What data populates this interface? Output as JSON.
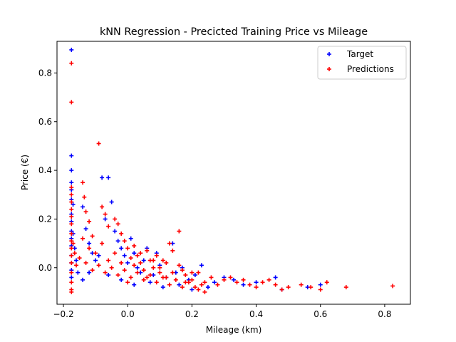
{
  "chart_data": {
    "type": "scatter",
    "title": "kNN Regression - Precicted Training Price vs Mileage",
    "xlabel": "Mileage (km)",
    "ylabel": "Price (€)",
    "xlim": [
      -0.22,
      0.88
    ],
    "ylim": [
      -0.15,
      0.93
    ],
    "xticks": [
      -0.2,
      0.0,
      0.2,
      0.4,
      0.6,
      0.8
    ],
    "xtick_labels": [
      "−0.2",
      "0.0",
      "0.2",
      "0.4",
      "0.6",
      "0.8"
    ],
    "yticks": [
      0.0,
      0.2,
      0.4,
      0.6,
      0.8
    ],
    "ytick_labels": [
      "0.0",
      "0.2",
      "0.4",
      "0.6",
      "0.8"
    ],
    "grid": false,
    "legend_position": "top-right",
    "marker": "plus",
    "series": [
      {
        "name": "Target",
        "color": "#0000ff",
        "points": [
          [
            -0.175,
            0.895
          ],
          [
            -0.175,
            0.46
          ],
          [
            -0.175,
            0.4
          ],
          [
            -0.175,
            0.35
          ],
          [
            -0.175,
            0.32
          ],
          [
            -0.175,
            0.28
          ],
          [
            -0.175,
            0.22
          ],
          [
            -0.175,
            0.19
          ],
          [
            -0.175,
            0.15
          ],
          [
            -0.175,
            0.12
          ],
          [
            -0.175,
            0.09
          ],
          [
            -0.175,
            0.05
          ],
          [
            -0.175,
            0.02
          ],
          [
            -0.175,
            -0.01
          ],
          [
            -0.175,
            -0.04
          ],
          [
            -0.17,
            0.26
          ],
          [
            -0.17,
            0.14
          ],
          [
            -0.165,
            0.08
          ],
          [
            -0.16,
            0.03
          ],
          [
            -0.155,
            -0.02
          ],
          [
            -0.14,
            0.25
          ],
          [
            -0.13,
            0.16
          ],
          [
            -0.12,
            0.1
          ],
          [
            -0.11,
            0.06
          ],
          [
            -0.1,
            0.03
          ],
          [
            -0.08,
            0.37
          ],
          [
            -0.06,
            0.37
          ],
          [
            -0.05,
            0.27
          ],
          [
            -0.07,
            0.2
          ],
          [
            -0.04,
            0.15
          ],
          [
            -0.03,
            0.11
          ],
          [
            -0.02,
            0.08
          ],
          [
            -0.01,
            0.05
          ],
          [
            0.0,
            0.02
          ],
          [
            0.01,
            0.12
          ],
          [
            0.02,
            0.06
          ],
          [
            0.03,
            0.0
          ],
          [
            0.04,
            -0.02
          ],
          [
            0.05,
            0.03
          ],
          [
            0.06,
            0.08
          ],
          [
            0.08,
            -0.03
          ],
          [
            0.09,
            0.06
          ],
          [
            0.1,
            0.01
          ],
          [
            0.12,
            -0.04
          ],
          [
            0.14,
            0.1
          ],
          [
            0.15,
            -0.02
          ],
          [
            0.17,
            0.0
          ],
          [
            0.19,
            -0.05
          ],
          [
            0.21,
            -0.03
          ],
          [
            0.23,
            0.01
          ],
          [
            0.25,
            -0.08
          ],
          [
            0.27,
            -0.06
          ],
          [
            0.3,
            -0.04
          ],
          [
            0.33,
            -0.05
          ],
          [
            0.36,
            -0.07
          ],
          [
            0.4,
            -0.06
          ],
          [
            0.46,
            -0.04
          ],
          [
            0.48,
            -0.09
          ],
          [
            0.56,
            -0.08
          ],
          [
            0.6,
            -0.07
          ],
          [
            -0.09,
            0.05
          ],
          [
            -0.12,
            -0.02
          ],
          [
            -0.14,
            -0.05
          ],
          [
            -0.06,
            -0.03
          ],
          [
            -0.02,
            -0.05
          ],
          [
            0.02,
            -0.07
          ],
          [
            0.07,
            -0.06
          ],
          [
            0.11,
            -0.08
          ],
          [
            0.16,
            -0.07
          ],
          [
            0.2,
            -0.09
          ]
        ]
      },
      {
        "name": "Predictions",
        "color": "#ff0000",
        "points": [
          [
            -0.175,
            0.84
          ],
          [
            -0.175,
            0.68
          ],
          [
            -0.175,
            0.33
          ],
          [
            -0.175,
            0.3
          ],
          [
            -0.175,
            0.27
          ],
          [
            -0.175,
            0.24
          ],
          [
            -0.175,
            0.21
          ],
          [
            -0.175,
            0.18
          ],
          [
            -0.175,
            0.14
          ],
          [
            -0.175,
            0.11
          ],
          [
            -0.175,
            0.08
          ],
          [
            -0.175,
            0.05
          ],
          [
            -0.175,
            0.02
          ],
          [
            -0.175,
            -0.02
          ],
          [
            -0.175,
            -0.06
          ],
          [
            -0.175,
            -0.09
          ],
          [
            -0.175,
            -0.1
          ],
          [
            -0.17,
            0.1
          ],
          [
            -0.165,
            0.06
          ],
          [
            -0.16,
            0.01
          ],
          [
            -0.14,
            0.35
          ],
          [
            -0.135,
            0.29
          ],
          [
            -0.13,
            0.23
          ],
          [
            -0.12,
            0.19
          ],
          [
            -0.11,
            0.13
          ],
          [
            -0.09,
            0.51
          ],
          [
            -0.08,
            0.25
          ],
          [
            -0.07,
            0.22
          ],
          [
            -0.06,
            0.17
          ],
          [
            -0.04,
            0.2
          ],
          [
            -0.03,
            0.18
          ],
          [
            -0.02,
            0.14
          ],
          [
            -0.01,
            0.11
          ],
          [
            0.0,
            0.08
          ],
          [
            0.01,
            0.04
          ],
          [
            0.02,
            0.09
          ],
          [
            0.03,
            0.05
          ],
          [
            0.04,
            0.02
          ],
          [
            0.05,
            -0.01
          ],
          [
            0.06,
            0.07
          ],
          [
            0.07,
            0.03
          ],
          [
            0.08,
            0.0
          ],
          [
            0.09,
            0.05
          ],
          [
            0.1,
            -0.02
          ],
          [
            0.11,
            0.03
          ],
          [
            0.12,
            -0.04
          ],
          [
            0.13,
            0.1
          ],
          [
            0.14,
            0.07
          ],
          [
            0.16,
            0.15
          ],
          [
            0.17,
            -0.01
          ],
          [
            0.18,
            -0.03
          ],
          [
            0.2,
            -0.05
          ],
          [
            0.22,
            -0.02
          ],
          [
            0.24,
            -0.06
          ],
          [
            0.26,
            -0.04
          ],
          [
            0.28,
            -0.07
          ],
          [
            0.3,
            -0.05
          ],
          [
            0.32,
            -0.04
          ],
          [
            0.34,
            -0.06
          ],
          [
            0.36,
            -0.05
          ],
          [
            0.38,
            -0.07
          ],
          [
            0.4,
            -0.08
          ],
          [
            0.42,
            -0.06
          ],
          [
            0.44,
            -0.05
          ],
          [
            0.46,
            -0.07
          ],
          [
            0.48,
            -0.09
          ],
          [
            0.5,
            -0.08
          ],
          [
            0.54,
            -0.07
          ],
          [
            0.57,
            -0.08
          ],
          [
            0.6,
            -0.09
          ],
          [
            0.62,
            -0.06
          ],
          [
            0.68,
            -0.08
          ],
          [
            0.825,
            -0.075
          ],
          [
            -0.15,
            0.04
          ],
          [
            -0.13,
            0.02
          ],
          [
            -0.11,
            -0.01
          ],
          [
            -0.09,
            0.01
          ],
          [
            -0.07,
            -0.02
          ],
          [
            -0.05,
            0.0
          ],
          [
            -0.03,
            -0.03
          ],
          [
            -0.01,
            -0.01
          ],
          [
            0.01,
            -0.04
          ],
          [
            0.03,
            -0.02
          ],
          [
            0.05,
            -0.05
          ],
          [
            0.07,
            -0.03
          ],
          [
            0.09,
            -0.06
          ],
          [
            0.11,
            -0.04
          ],
          [
            0.13,
            -0.07
          ],
          [
            0.15,
            -0.05
          ],
          [
            0.17,
            -0.08
          ],
          [
            0.19,
            -0.06
          ],
          [
            0.21,
            -0.08
          ],
          [
            0.23,
            -0.07
          ],
          [
            -0.14,
            0.12
          ],
          [
            -0.12,
            0.08
          ],
          [
            -0.1,
            0.06
          ],
          [
            -0.08,
            0.1
          ],
          [
            -0.06,
            0.03
          ],
          [
            -0.04,
            0.06
          ],
          [
            -0.02,
            0.02
          ],
          [
            0.0,
            -0.06
          ],
          [
            0.02,
            0.01
          ],
          [
            0.04,
            0.06
          ],
          [
            0.06,
            -0.04
          ],
          [
            0.08,
            0.03
          ],
          [
            0.1,
            0.0
          ],
          [
            0.12,
            0.02
          ],
          [
            0.14,
            -0.02
          ],
          [
            0.16,
            0.01
          ],
          [
            0.18,
            -0.06
          ],
          [
            0.2,
            -0.02
          ],
          [
            0.22,
            -0.09
          ],
          [
            0.24,
            -0.1
          ]
        ]
      }
    ]
  }
}
